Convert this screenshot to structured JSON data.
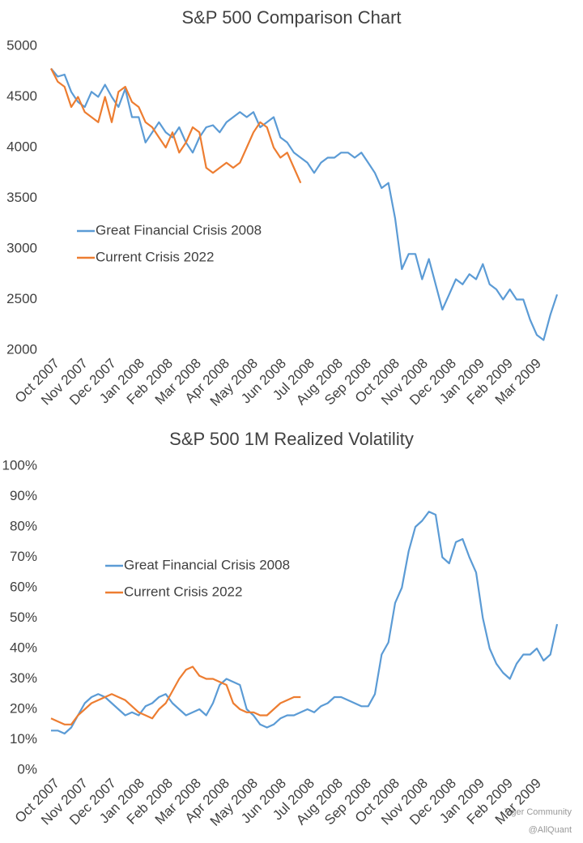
{
  "chart_data": [
    {
      "type": "line",
      "title": "S&P 500 Comparison Chart",
      "x": [
        0,
        5,
        10,
        15,
        20,
        25,
        30,
        35,
        40,
        45,
        50,
        55,
        60,
        65,
        70,
        75,
        80,
        85,
        90,
        95,
        100,
        105,
        110,
        115,
        120,
        125,
        130,
        135,
        140,
        145,
        150,
        155,
        160,
        165,
        170,
        175,
        180,
        185,
        190,
        195,
        200,
        205,
        210,
        215,
        220,
        225,
        230,
        235,
        240,
        245,
        250,
        255,
        260,
        265,
        270,
        275,
        280,
        285,
        290,
        295,
        300,
        305,
        310,
        315,
        320,
        325,
        330,
        335,
        340,
        345,
        350,
        355,
        360,
        365,
        370,
        375
      ],
      "series": [
        {
          "name": "Great Financial Crisis 2008",
          "color": "#5b9bd5",
          "values": [
            4780,
            4700,
            4720,
            4550,
            4450,
            4400,
            4550,
            4500,
            4620,
            4500,
            4400,
            4580,
            4300,
            4300,
            4050,
            4150,
            4250,
            4150,
            4100,
            4200,
            4050,
            3950,
            4100,
            4200,
            4220,
            4150,
            4250,
            4300,
            4350,
            4300,
            4350,
            4200,
            4250,
            4300,
            4100,
            4050,
            3950,
            3900,
            3850,
            3750,
            3850,
            3900,
            3900,
            3950,
            3950,
            3900,
            3950,
            3850,
            3750,
            3600,
            3650,
            3300,
            2800,
            2950,
            2950,
            2700,
            2900,
            2650,
            2400,
            2550,
            2700,
            2650,
            2750,
            2700,
            2850,
            2650,
            2600,
            2500,
            2600,
            2500,
            2500,
            2300,
            2150,
            2100,
            2350,
            2550
          ]
        },
        {
          "name": "Current Crisis 2022",
          "color": "#ed7d31",
          "values": [
            4780,
            4650,
            4600,
            4400,
            4500,
            4350,
            4300,
            4250,
            4500,
            4250,
            4550,
            4600,
            4450,
            4400,
            4250,
            4200,
            4100,
            4000,
            4150,
            3950,
            4050,
            4200,
            4150,
            3800,
            3750,
            3800,
            3850,
            3800,
            3850,
            4000,
            4150,
            4250,
            4200,
            4000,
            3900,
            3950,
            3800,
            3650,
            null,
            null,
            null,
            null,
            null,
            null,
            null,
            null,
            null,
            null,
            null,
            null,
            null,
            null,
            null,
            null,
            null,
            null,
            null,
            null,
            null,
            null,
            null,
            null,
            null,
            null,
            null,
            null,
            null,
            null,
            null,
            null,
            null,
            null,
            null,
            null,
            null,
            null
          ]
        }
      ],
      "xlim": [
        0,
        378
      ],
      "xticks": [
        {
          "value": 0,
          "label": "Oct 2007"
        },
        {
          "value": 21,
          "label": "Nov 2007"
        },
        {
          "value": 42,
          "label": "Dec 2007"
        },
        {
          "value": 63,
          "label": "Jan 2008"
        },
        {
          "value": 84,
          "label": "Feb 2008"
        },
        {
          "value": 105,
          "label": "Mar 2008"
        },
        {
          "value": 126,
          "label": "Apr 2008"
        },
        {
          "value": 147,
          "label": "May 2008"
        },
        {
          "value": 168,
          "label": "Jun 2008"
        },
        {
          "value": 189,
          "label": "Jul 2008"
        },
        {
          "value": 210,
          "label": "Aug 2008"
        },
        {
          "value": 231,
          "label": "Sep 2008"
        },
        {
          "value": 252,
          "label": "Oct 2008"
        },
        {
          "value": 273,
          "label": "Nov 2008"
        },
        {
          "value": 294,
          "label": "Dec 2008"
        },
        {
          "value": 315,
          "label": "Jan 2009"
        },
        {
          "value": 336,
          "label": "Feb 2009"
        },
        {
          "value": 357,
          "label": "Mar 2009"
        }
      ],
      "ylim": [
        2000,
        5000
      ],
      "yticks": [
        2000,
        2500,
        3000,
        3500,
        4000,
        4500,
        5000
      ],
      "grid": false,
      "legend": "center-left"
    },
    {
      "type": "line",
      "title": "S&P 500 1M Realized Volatility",
      "x": [
        0,
        5,
        10,
        15,
        20,
        25,
        30,
        35,
        40,
        45,
        50,
        55,
        60,
        65,
        70,
        75,
        80,
        85,
        90,
        95,
        100,
        105,
        110,
        115,
        120,
        125,
        130,
        135,
        140,
        145,
        150,
        155,
        160,
        165,
        170,
        175,
        180,
        185,
        190,
        195,
        200,
        205,
        210,
        215,
        220,
        225,
        230,
        235,
        240,
        245,
        250,
        255,
        260,
        265,
        270,
        275,
        280,
        285,
        290,
        295,
        300,
        305,
        310,
        315,
        320,
        325,
        330,
        335,
        340,
        345,
        350,
        355,
        360,
        365,
        370,
        375
      ],
      "series": [
        {
          "name": "Great Financial Crisis 2008",
          "color": "#5b9bd5",
          "values": [
            13,
            13,
            12,
            14,
            18,
            22,
            24,
            25,
            24,
            22,
            20,
            18,
            19,
            18,
            21,
            22,
            24,
            25,
            22,
            20,
            18,
            19,
            20,
            18,
            22,
            28,
            30,
            29,
            28,
            20,
            18,
            15,
            14,
            15,
            17,
            18,
            18,
            19,
            20,
            19,
            21,
            22,
            24,
            24,
            23,
            22,
            21,
            21,
            25,
            38,
            42,
            55,
            60,
            72,
            80,
            82,
            85,
            84,
            70,
            68,
            75,
            76,
            70,
            65,
            50,
            40,
            35,
            32,
            30,
            35,
            38,
            38,
            40,
            36,
            38,
            48
          ]
        },
        {
          "name": "Current Crisis 2022",
          "color": "#ed7d31",
          "values": [
            17,
            16,
            15,
            15,
            18,
            20,
            22,
            23,
            24,
            25,
            24,
            23,
            21,
            19,
            18,
            17,
            20,
            22,
            26,
            30,
            33,
            34,
            31,
            30,
            30,
            29,
            28,
            22,
            20,
            19,
            19,
            18,
            18,
            20,
            22,
            23,
            24,
            24,
            null,
            null,
            null,
            null,
            null,
            null,
            null,
            null,
            null,
            null,
            null,
            null,
            null,
            null,
            null,
            null,
            null,
            null,
            null,
            null,
            null,
            null,
            null,
            null,
            null,
            null,
            null,
            null,
            null,
            null,
            null,
            null,
            null,
            null,
            null,
            null,
            null,
            null
          ]
        }
      ],
      "xlim": [
        0,
        378
      ],
      "xticks": [
        {
          "value": 0,
          "label": "Oct 2007"
        },
        {
          "value": 21,
          "label": "Nov 2007"
        },
        {
          "value": 42,
          "label": "Dec 2007"
        },
        {
          "value": 63,
          "label": "Jan 2008"
        },
        {
          "value": 84,
          "label": "Feb 2008"
        },
        {
          "value": 105,
          "label": "Mar 2008"
        },
        {
          "value": 126,
          "label": "Apr 2008"
        },
        {
          "value": 147,
          "label": "May 2008"
        },
        {
          "value": 168,
          "label": "Jun 2008"
        },
        {
          "value": 189,
          "label": "Jul 2008"
        },
        {
          "value": 210,
          "label": "Aug 2008"
        },
        {
          "value": 231,
          "label": "Sep 2008"
        },
        {
          "value": 252,
          "label": "Oct 2008"
        },
        {
          "value": 273,
          "label": "Nov 2008"
        },
        {
          "value": 294,
          "label": "Dec 2008"
        },
        {
          "value": 315,
          "label": "Jan 2009"
        },
        {
          "value": 336,
          "label": "Feb 2009"
        },
        {
          "value": 357,
          "label": "Mar 2009"
        }
      ],
      "ylim": [
        0,
        100
      ],
      "yticks": [
        {
          "value": 0,
          "label": "0%"
        },
        {
          "value": 10,
          "label": "10%"
        },
        {
          "value": 20,
          "label": "20%"
        },
        {
          "value": 30,
          "label": "30%"
        },
        {
          "value": 40,
          "label": "40%"
        },
        {
          "value": 50,
          "label": "50%"
        },
        {
          "value": 60,
          "label": "60%"
        },
        {
          "value": 70,
          "label": "70%"
        },
        {
          "value": 80,
          "label": "80%"
        },
        {
          "value": 90,
          "label": "90%"
        },
        {
          "value": 100,
          "label": "100%"
        }
      ],
      "grid": false,
      "legend": "center-left"
    }
  ],
  "watermark": [
    "Tiger Community",
    "@AllQuant"
  ]
}
